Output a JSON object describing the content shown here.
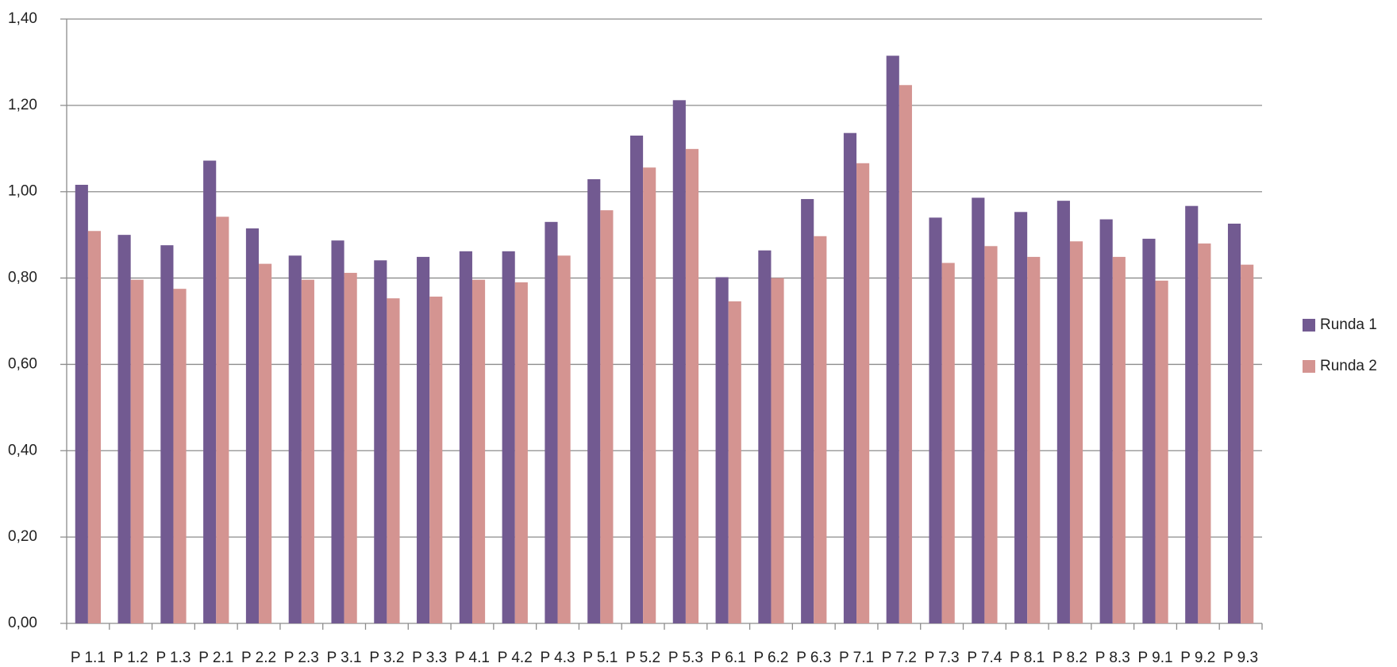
{
  "chart_data": {
    "type": "bar",
    "categories": [
      "P 1.1",
      "P 1.2",
      "P 1.3",
      "P 2.1",
      "P 2.2",
      "P 2.3",
      "P 3.1",
      "P 3.2",
      "P 3.3",
      "P 4.1",
      "P 4.2",
      "P 4.3",
      "P 5.1",
      "P 5.2",
      "P 5.3",
      "P 6.1",
      "P 6.2",
      "P 6.3",
      "P 7.1",
      "P 7.2",
      "P 7.3",
      "P 7.4",
      "P 8.1",
      "P 8.2",
      "P 8.3",
      "P 9.1",
      "P 9.2",
      "P 9.3"
    ],
    "series": [
      {
        "name": "Runda 1",
        "color": "#725a91",
        "values": [
          1.016,
          0.9,
          0.876,
          1.072,
          0.915,
          0.852,
          0.887,
          0.841,
          0.849,
          0.862,
          0.862,
          0.93,
          1.029,
          1.13,
          1.212,
          0.802,
          0.864,
          0.983,
          1.136,
          1.315,
          0.94,
          0.986,
          0.953,
          0.979,
          0.936,
          0.891,
          0.967,
          0.926
        ]
      },
      {
        "name": "Runda 2",
        "color": "#d49491",
        "values": [
          0.909,
          0.796,
          0.775,
          0.942,
          0.833,
          0.796,
          0.812,
          0.753,
          0.757,
          0.796,
          0.79,
          0.852,
          0.957,
          1.056,
          1.099,
          0.746,
          0.8,
          0.897,
          1.066,
          1.247,
          0.835,
          0.874,
          0.849,
          0.885,
          0.849,
          0.794,
          0.88,
          0.831
        ]
      }
    ],
    "ylim": [
      0,
      1.4
    ],
    "yticks": [
      {
        "value": 0,
        "label": "0,00"
      },
      {
        "value": 0.2,
        "label": "0,20"
      },
      {
        "value": 0.4,
        "label": "0,40"
      },
      {
        "value": 0.6,
        "label": "0,60"
      },
      {
        "value": 0.8,
        "label": "0,80"
      },
      {
        "value": 1.0,
        "label": "1,00"
      },
      {
        "value": 1.2,
        "label": "1,20"
      },
      {
        "value": 1.4,
        "label": "1,40"
      }
    ],
    "grid": true,
    "legend": "right"
  }
}
